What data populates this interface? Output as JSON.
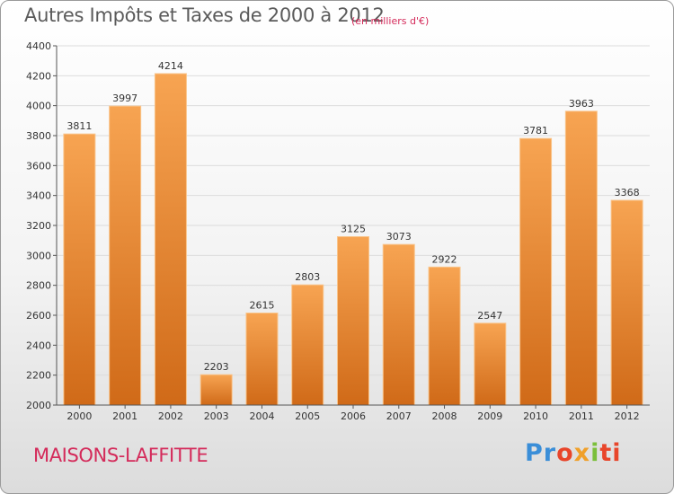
{
  "header": {
    "title": "Autres Impôts et Taxes de 2000 à 2012",
    "subtitle": "(en milliers d'€)"
  },
  "footer": {
    "city": "MAISONS-LAFFITTE",
    "logo": [
      "Pr",
      "o",
      "x",
      "i",
      "ti"
    ]
  },
  "colors": {
    "bar_light": "#f7a452",
    "bar_dark": "#d06a18",
    "bar_edge": "#f9c48a",
    "accent": "#d42a5a"
  },
  "chart_data": {
    "type": "bar",
    "categories": [
      "2000",
      "2001",
      "2002",
      "2003",
      "2004",
      "2005",
      "2006",
      "2007",
      "2008",
      "2009",
      "2010",
      "2011",
      "2012"
    ],
    "values": [
      3811,
      3997,
      4214,
      2203,
      2615,
      2803,
      3125,
      3073,
      2922,
      2547,
      3781,
      3963,
      3368
    ],
    "title": "Autres Impôts et Taxes de 2000 à 2012",
    "ylim": [
      2000,
      4400
    ],
    "yticks": [
      2000,
      2200,
      2400,
      2600,
      2800,
      3000,
      3200,
      3400,
      3600,
      3800,
      4000,
      4200,
      4400
    ],
    "grid": true,
    "legend": "none"
  }
}
